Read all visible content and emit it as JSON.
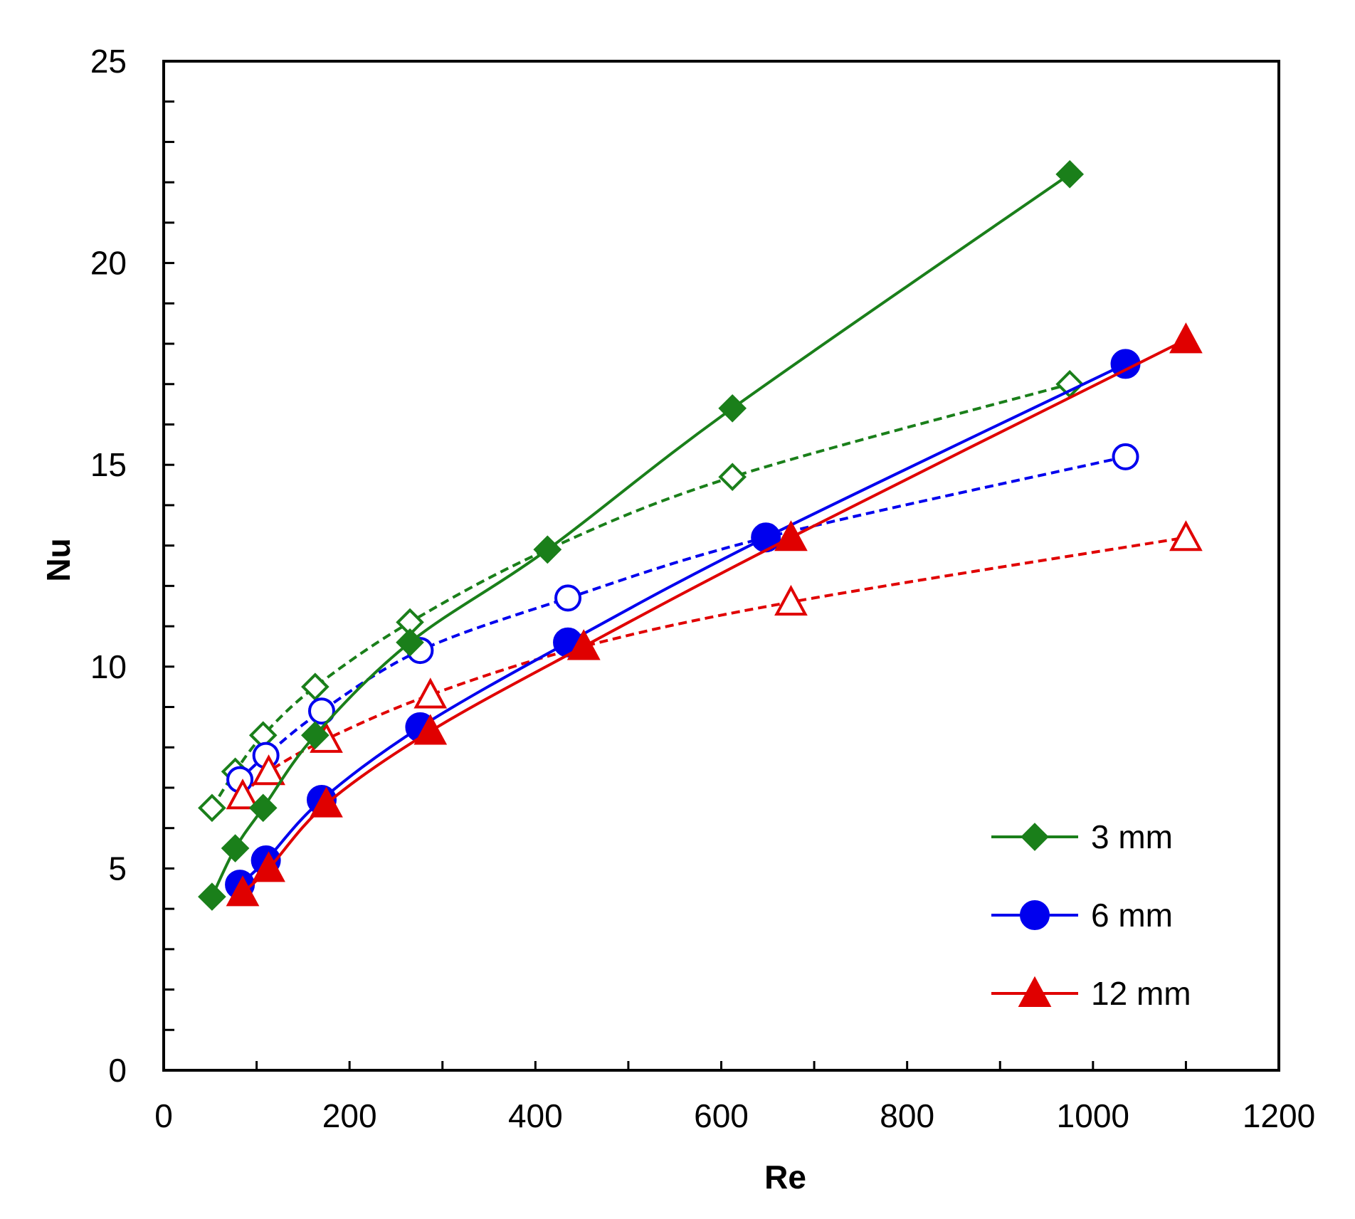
{
  "chart_data": {
    "type": "line",
    "title": "",
    "xlabel": "Re",
    "ylabel": "Nu",
    "xlim": [
      0,
      1200
    ],
    "ylim": [
      0,
      25
    ],
    "x_ticks": [
      0,
      200,
      400,
      600,
      800,
      1000,
      1200
    ],
    "y_ticks": [
      0,
      5,
      10,
      15,
      20,
      25
    ],
    "x_tick_labels": [
      "0",
      "200",
      "400",
      "600",
      "800",
      "1000",
      "1200"
    ],
    "y_tick_labels": [
      "0",
      "5",
      "10",
      "15",
      "20",
      "25"
    ],
    "grid": false,
    "legend_position": "bottom-right",
    "legend": [
      {
        "label": "3 mm",
        "color": "#1a7f1a",
        "marker": "diamond"
      },
      {
        "label": "6 mm",
        "color": "#0000ee",
        "marker": "circle"
      },
      {
        "label": "12 mm",
        "color": "#e00000",
        "marker": "triangle"
      }
    ],
    "series": [
      {
        "name": "3 mm (solid)",
        "color": "#1a7f1a",
        "marker": "diamond",
        "filled": true,
        "dashed": false,
        "x": [
          52,
          77,
          107,
          163,
          265,
          413,
          612,
          975
        ],
        "y": [
          4.3,
          5.5,
          6.5,
          8.3,
          10.6,
          12.9,
          16.4,
          22.2
        ]
      },
      {
        "name": "3 mm (dashed)",
        "color": "#1a7f1a",
        "marker": "diamond",
        "filled": false,
        "dashed": true,
        "x": [
          52,
          77,
          107,
          163,
          265,
          413,
          612,
          975
        ],
        "y": [
          6.5,
          7.4,
          8.3,
          9.5,
          11.1,
          12.9,
          14.7,
          17.0
        ]
      },
      {
        "name": "6 mm (solid)",
        "color": "#0000ee",
        "marker": "circle",
        "filled": true,
        "dashed": false,
        "x": [
          82,
          110,
          170,
          276,
          435,
          648,
          1035
        ],
        "y": [
          4.6,
          5.2,
          6.7,
          8.5,
          10.6,
          13.2,
          17.5
        ]
      },
      {
        "name": "6 mm (dashed)",
        "color": "#0000ee",
        "marker": "circle",
        "filled": false,
        "dashed": true,
        "x": [
          82,
          110,
          170,
          276,
          435,
          648,
          1035
        ],
        "y": [
          7.2,
          7.8,
          8.9,
          10.4,
          11.7,
          13.2,
          15.2
        ]
      },
      {
        "name": "12 mm (solid)",
        "color": "#e00000",
        "marker": "triangle",
        "filled": true,
        "dashed": false,
        "x": [
          85,
          113,
          175,
          287,
          452,
          675,
          1100
        ],
        "y": [
          4.4,
          5.0,
          6.6,
          8.4,
          10.5,
          13.2,
          18.1
        ]
      },
      {
        "name": "12 mm (dashed)",
        "color": "#e00000",
        "marker": "triangle",
        "filled": false,
        "dashed": true,
        "x": [
          85,
          113,
          175,
          287,
          452,
          675,
          1100
        ],
        "y": [
          6.8,
          7.4,
          8.2,
          9.3,
          10.5,
          11.6,
          13.2
        ]
      }
    ]
  }
}
